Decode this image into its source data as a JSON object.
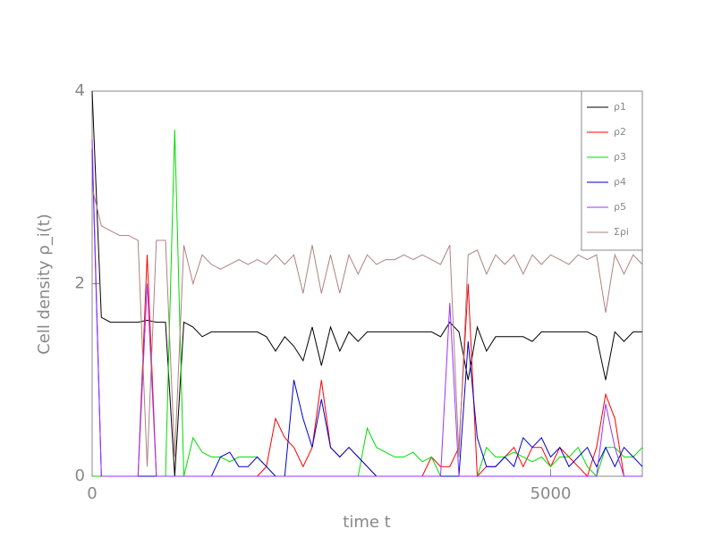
{
  "chart_data": {
    "type": "line",
    "xlabel": "time t",
    "ylabel": "Cell density ρ_i(t)",
    "x": [
      0,
      100,
      200,
      300,
      400,
      500,
      600,
      700,
      800,
      900,
      1000,
      1100,
      1200,
      1300,
      1400,
      1500,
      1600,
      1700,
      1800,
      1900,
      2000,
      2100,
      2200,
      2300,
      2400,
      2500,
      2600,
      2700,
      2800,
      2900,
      3000,
      3100,
      3200,
      3300,
      3400,
      3500,
      3600,
      3700,
      3800,
      3900,
      4000,
      4100,
      4200,
      4300,
      4400,
      4500,
      4600,
      4700,
      4800,
      4900,
      5000,
      5100,
      5200,
      5300,
      5400,
      5500,
      5600,
      5700,
      5800,
      5900,
      6000
    ],
    "series": [
      {
        "name": "ρ1",
        "color": "#000000",
        "values": [
          4,
          1.65,
          1.6,
          1.6,
          1.6,
          1.6,
          1.62,
          1.6,
          1.6,
          0,
          1.6,
          1.55,
          1.45,
          1.5,
          1.5,
          1.5,
          1.5,
          1.5,
          1.5,
          1.45,
          1.3,
          1.45,
          1.35,
          1.2,
          1.55,
          1.15,
          1.55,
          1.3,
          1.5,
          1.4,
          1.5,
          1.5,
          1.5,
          1.5,
          1.5,
          1.5,
          1.5,
          1.5,
          1.45,
          1.6,
          1.5,
          1.0,
          1.55,
          1.3,
          1.45,
          1.45,
          1.45,
          1.45,
          1.4,
          1.5,
          1.5,
          1.5,
          1.5,
          1.5,
          1.5,
          1.45,
          1.0,
          1.5,
          1.4,
          1.5,
          1.5
        ]
      },
      {
        "name": "ρ2",
        "color": "#ff0000",
        "values": [
          0,
          0,
          0,
          0,
          0,
          0,
          2.3,
          0,
          0,
          0,
          0,
          0,
          0,
          0,
          0,
          0,
          0,
          0,
          0,
          0.1,
          0.6,
          0.4,
          0.3,
          0.1,
          0.3,
          1.0,
          0.3,
          0.2,
          0.3,
          0.2,
          0.1,
          0,
          0,
          0,
          0,
          0,
          0,
          0.2,
          0.1,
          0.1,
          0.3,
          2.0,
          0,
          0.1,
          0.1,
          0.2,
          0.3,
          0.1,
          0.3,
          0.3,
          0.1,
          0.3,
          0.2,
          0.1,
          0,
          0.3,
          0.85,
          0.6,
          0,
          0,
          0
        ]
      },
      {
        "name": "ρ3",
        "color": "#00dd00",
        "values": [
          0,
          0,
          0,
          0,
          0,
          0,
          0,
          0,
          0,
          3.6,
          0,
          0.4,
          0.25,
          0.2,
          0.2,
          0.15,
          0.2,
          0.2,
          0.2,
          0.1,
          0,
          0,
          0,
          0,
          0,
          0,
          0,
          0,
          0,
          0,
          0.5,
          0.3,
          0.25,
          0.2,
          0.2,
          0.25,
          0.15,
          0.2,
          0,
          0,
          0,
          0,
          0,
          0.3,
          0.2,
          0.2,
          0.25,
          0.2,
          0.15,
          0.2,
          0.1,
          0.2,
          0.2,
          0.3,
          0.1,
          0,
          0.3,
          0.3,
          0.2,
          0.2,
          0.3
        ]
      },
      {
        "name": "ρ4",
        "color": "#0000cc",
        "values": [
          3.4,
          0,
          0,
          0,
          0,
          0,
          0,
          0,
          0,
          0,
          0,
          0,
          0,
          0,
          0.2,
          0.25,
          0.1,
          0.1,
          0.2,
          0.1,
          0,
          0,
          1.0,
          0.6,
          0.3,
          0.8,
          0.3,
          0.2,
          0.3,
          0.2,
          0.1,
          0,
          0,
          0,
          0,
          0,
          0,
          0,
          0,
          0,
          0,
          1.4,
          0.4,
          0.1,
          0.1,
          0.2,
          0.1,
          0.4,
          0.3,
          0.4,
          0.2,
          0.3,
          0.1,
          0.2,
          0.3,
          0.1,
          0.3,
          0.1,
          0.3,
          0.2,
          0.1
        ]
      },
      {
        "name": "ρ5",
        "color": "#9933ff",
        "values": [
          3.5,
          0,
          0,
          0,
          0,
          0,
          2.0,
          0,
          0,
          0,
          0,
          0,
          0,
          0,
          0,
          0,
          0,
          0,
          0,
          0,
          0,
          0,
          0,
          0,
          0,
          0,
          0,
          0,
          0,
          0,
          0,
          0,
          0,
          0,
          0,
          0,
          0,
          0,
          0,
          1.8,
          0,
          0,
          0,
          0,
          0,
          0,
          0,
          0,
          0,
          0,
          0,
          0,
          0,
          0,
          0,
          0,
          0.75,
          0.3,
          0,
          0,
          0
        ]
      },
      {
        "name": "Σρi",
        "color": "#b08080",
        "values": [
          3.0,
          2.6,
          2.55,
          2.5,
          2.5,
          2.45,
          0.1,
          2.45,
          2.45,
          0.2,
          2.4,
          2.0,
          2.3,
          2.2,
          2.15,
          2.2,
          2.25,
          2.2,
          2.25,
          2.2,
          2.3,
          2.2,
          2.3,
          1.9,
          2.4,
          1.9,
          2.3,
          1.9,
          2.3,
          2.1,
          2.3,
          2.2,
          2.25,
          2.25,
          2.3,
          2.25,
          2.3,
          2.25,
          2.2,
          2.4,
          0.2,
          2.3,
          2.35,
          2.1,
          2.3,
          2.2,
          2.3,
          2.1,
          2.3,
          2.2,
          2.3,
          2.25,
          2.2,
          2.3,
          2.25,
          2.3,
          1.7,
          2.3,
          2.1,
          2.3,
          2.2
        ]
      }
    ],
    "xlim": [
      0,
      6000
    ],
    "ylim": [
      0,
      4
    ],
    "xticks": [
      0,
      5000
    ],
    "yticks": [
      0,
      2,
      4
    ],
    "legend": "upper right"
  }
}
